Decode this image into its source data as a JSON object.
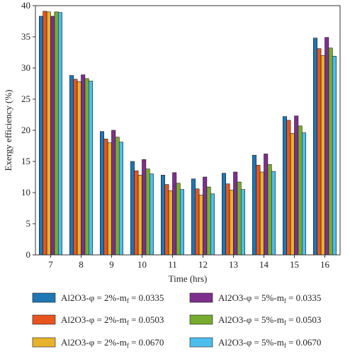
{
  "chart_data": {
    "type": "bar",
    "xlabel": "Time (hrs)",
    "ylabel": "Exergy efficiency (%)",
    "ylim": [
      0,
      40
    ],
    "yticks": [
      0,
      5,
      10,
      15,
      20,
      25,
      30,
      35,
      40
    ],
    "categories": [
      "7",
      "8",
      "9",
      "10",
      "11",
      "12",
      "13",
      "14",
      "15",
      "16"
    ],
    "series": [
      {
        "name": "Al2O3-φ = 2%-m_f = 0.0335",
        "label_main": "Al2O3-φ = 2%-m",
        "label_sub": "f",
        "label_tail": " = 0.0335",
        "color": "#1f77b4",
        "values": [
          38.3,
          28.8,
          19.8,
          15.0,
          12.8,
          12.2,
          13.1,
          16.0,
          22.2,
          34.8
        ]
      },
      {
        "name": "Al2O3-φ = 2%-m_f = 0.0503",
        "label_main": "Al2O3-φ = 2%-m",
        "label_sub": "f",
        "label_tail": " = 0.0503",
        "color": "#e8541e",
        "values": [
          39.1,
          28.2,
          18.6,
          13.5,
          11.3,
          10.6,
          11.4,
          14.4,
          21.6,
          33.1
        ]
      },
      {
        "name": "Al2O3-φ = 2%-m_f = 0.0670",
        "label_main": "Al2O3-φ = 2%-m",
        "label_sub": "f",
        "label_tail": " = 0.0670",
        "color": "#e8b32c",
        "values": [
          39.0,
          27.8,
          18.0,
          12.8,
          10.3,
          9.6,
          10.4,
          13.3,
          19.5,
          32.0
        ]
      },
      {
        "name": "Al2O3-φ = 5%-m_f = 0.0335",
        "label_main": "Al2O3-φ = 5%-m",
        "label_sub": "f",
        "label_tail": " = 0.0335",
        "color": "#7e2f8e",
        "values": [
          38.3,
          28.9,
          20.0,
          15.3,
          13.2,
          12.5,
          13.3,
          16.2,
          22.3,
          34.9
        ]
      },
      {
        "name": "Al2O3-φ = 5%-m_f = 0.0503",
        "label_main": "Al2O3-φ = 5%-m",
        "label_sub": "f",
        "label_tail": " = 0.0503",
        "color": "#77ac30",
        "values": [
          39.0,
          28.3,
          18.9,
          13.8,
          11.5,
          10.9,
          11.7,
          14.5,
          20.7,
          33.2
        ]
      },
      {
        "name": "Al2O3-φ = 5%-m_f = 0.0670",
        "label_main": "Al2O3-φ = 5%-m",
        "label_sub": "f",
        "label_tail": " = 0.0670",
        "color": "#4dbeee",
        "values": [
          38.9,
          27.9,
          18.1,
          13.0,
          10.5,
          9.8,
          10.5,
          13.4,
          19.6,
          31.9
        ]
      }
    ],
    "legend_placement": "bottom"
  }
}
